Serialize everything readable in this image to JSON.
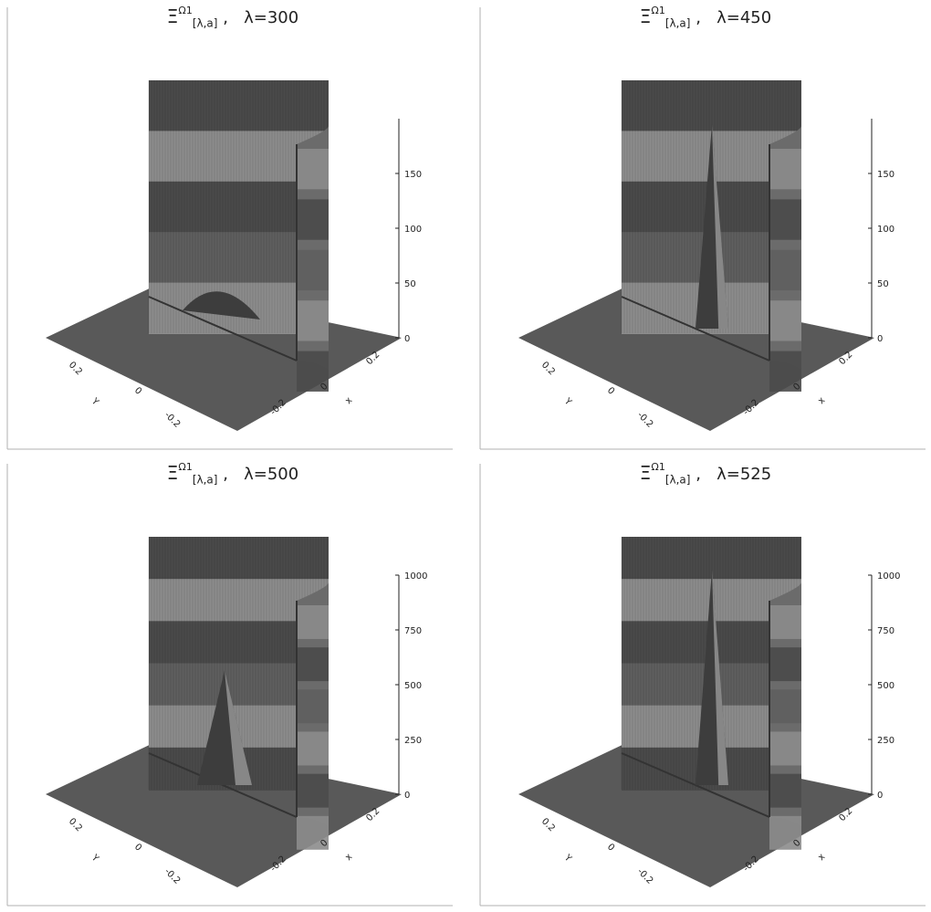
{
  "chart_data": [
    {
      "type": "surface",
      "title_symbol": "Ξ",
      "title_sup": "Ω1",
      "title_sub": "[λ,a]",
      "title_sep": ",",
      "title_param": "λ=300",
      "lambda": 300,
      "zticks": [
        "0",
        "50",
        "100",
        "150"
      ],
      "zlim": [
        0,
        200
      ],
      "xlabel": "x",
      "ylabel": "Y",
      "xticks": [
        "-0.2",
        "0",
        "0.2"
      ],
      "yticks": [
        "-0.2",
        "0",
        "0.2"
      ],
      "peak_height": 30
    },
    {
      "type": "surface",
      "title_symbol": "Ξ",
      "title_sup": "Ω1",
      "title_sub": "[λ,a]",
      "title_sep": ",",
      "title_param": "λ=450",
      "lambda": 450,
      "zticks": [
        "0",
        "50",
        "100",
        "150"
      ],
      "zlim": [
        0,
        200
      ],
      "xlabel": "x",
      "ylabel": "Y",
      "xticks": [
        "-0.2",
        "0",
        "0.2"
      ],
      "yticks": [
        "-0.2",
        "0",
        "0.2"
      ],
      "peak_height": 170
    },
    {
      "type": "surface",
      "title_symbol": "Ξ",
      "title_sup": "Ω1",
      "title_sub": "[λ,a]",
      "title_sep": ",",
      "title_param": "λ=500",
      "lambda": 500,
      "zticks": [
        "0",
        "250",
        "500",
        "750",
        "1000"
      ],
      "zlim": [
        0,
        1000
      ],
      "xlabel": "x",
      "ylabel": "Y",
      "xticks": [
        "-0.2",
        "0",
        "0.2"
      ],
      "yticks": [
        "-0.2",
        "0",
        "0.2"
      ],
      "peak_height": 440
    },
    {
      "type": "surface",
      "title_symbol": "Ξ",
      "title_sup": "Ω1",
      "title_sub": "[λ,a]",
      "title_sep": ",",
      "title_param": "λ=525",
      "lambda": 525,
      "zticks": [
        "0",
        "250",
        "500",
        "750",
        "1000"
      ],
      "zlim": [
        0,
        1000
      ],
      "xlabel": "x",
      "ylabel": "Y",
      "xticks": [
        "-0.2",
        "0",
        "0.2"
      ],
      "yticks": [
        "-0.2",
        "0",
        "0.2"
      ],
      "peak_height": 900
    }
  ],
  "colors": {
    "floor": "#595959",
    "wall_dark": "#4a4a4a",
    "wall_light": "#8c8c8c",
    "peak_light": "#a6a6a6",
    "peak_dark": "#3d3d3d",
    "frame": "#b0b0b0"
  }
}
